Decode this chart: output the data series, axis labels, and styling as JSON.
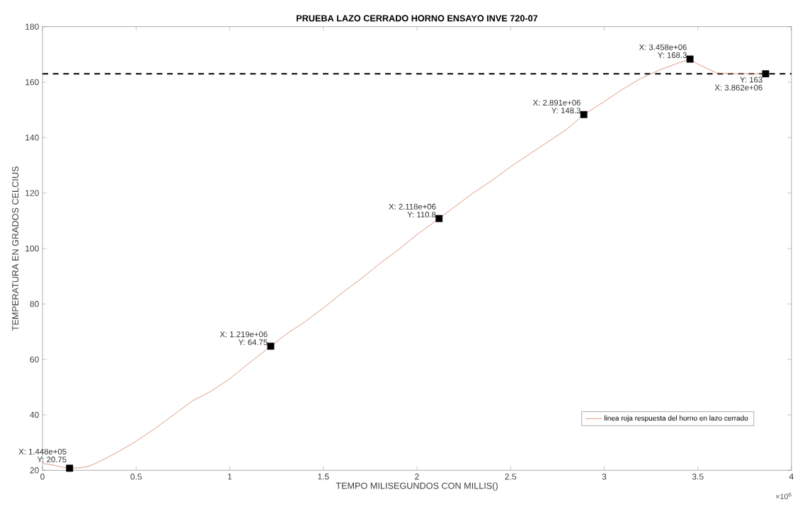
{
  "chart_data": {
    "type": "line",
    "title": "PRUEBA LAZO CERRADO HORNO ENSAYO INVE 720-07",
    "xlabel": "TEMPO MILISEGUNDOS CON MILLIS()",
    "ylabel": "TEMPERATURA EN GRADOS CELCIUS",
    "xlim": [
      0,
      4
    ],
    "ylim": [
      20,
      180
    ],
    "xticks": [
      0,
      0.5,
      1,
      1.5,
      2,
      2.5,
      3,
      3.5,
      4
    ],
    "yticks": [
      20,
      40,
      60,
      80,
      100,
      120,
      140,
      160,
      180
    ],
    "legend": "bottom right",
    "series": [
      {
        "name": "linea roja respuesta del horno en lazo cerrado",
        "color": "#d9957a",
        "line_style": "solid",
        "marker": "none",
        "x": [
          0,
          0.05,
          0.1,
          0.1448,
          0.2,
          0.25,
          0.3,
          0.4,
          0.5,
          0.6,
          0.7,
          0.8,
          0.9,
          1.0,
          1.1,
          1.219,
          1.3,
          1.4,
          1.5,
          1.6,
          1.7,
          1.8,
          1.9,
          2.0,
          2.118,
          2.2,
          2.3,
          2.4,
          2.5,
          2.6,
          2.7,
          2.8,
          2.891,
          3.0,
          3.1,
          3.2,
          3.3,
          3.4,
          3.458,
          3.5,
          3.6,
          3.7,
          3.8,
          3.862
        ],
        "values": [
          22.5,
          22,
          21.2,
          20.75,
          20.9,
          21.5,
          23,
          26.5,
          30.5,
          35,
          40,
          45,
          48.5,
          53,
          58.5,
          64.75,
          69,
          73.5,
          78.5,
          84,
          89,
          94.5,
          99.5,
          105,
          110.8,
          115,
          120,
          124.5,
          129.5,
          134,
          138.5,
          143,
          148.3,
          153,
          157.5,
          161.5,
          164.5,
          167,
          168.3,
          166.5,
          163.3,
          163,
          163,
          163
        ]
      },
      {
        "type": "scatter",
        "color": "#000000",
        "marker": "square",
        "x": [
          0.1448,
          1.219,
          2.118,
          2.891,
          3.458,
          3.862
        ],
        "values": [
          20.75,
          64.75,
          110.8,
          148.3,
          168.3,
          163
        ]
      }
    ],
    "ref_lines": [
      {
        "axis": "y",
        "value": 163,
        "color": "#000000",
        "line_style": "dashed"
      }
    ],
    "annotations": [
      {
        "text": "X: 1.448e+05",
        "x": 0.1448,
        "y": 20.75
      },
      {
        "text": "Y: 20.75",
        "x": 0.1448,
        "y": 20.75
      },
      {
        "text": "X: 1.219e+06",
        "x": 1.219,
        "y": 64.75
      },
      {
        "text": "Y: 64.75",
        "x": 1.219,
        "y": 64.75
      },
      {
        "text": "X: 2.118e+06",
        "x": 2.118,
        "y": 110.8
      },
      {
        "text": "Y: 110.8",
        "x": 2.118,
        "y": 110.8
      },
      {
        "text": "X: 2.891e+06",
        "x": 2.891,
        "y": 148.3
      },
      {
        "text": "Y: 148.3",
        "x": 2.891,
        "y": 148.3
      },
      {
        "text": "X: 3.458e+06",
        "x": 3.458,
        "y": 168.3
      },
      {
        "text": "Y: 168.3",
        "x": 3.458,
        "y": 168.3
      },
      {
        "text": "X: 3.862e+06",
        "x": 3.862,
        "y": 163
      },
      {
        "text": "Y: 163",
        "x": 3.862,
        "y": 163
      },
      "×10$^{6}$"
    ]
  }
}
